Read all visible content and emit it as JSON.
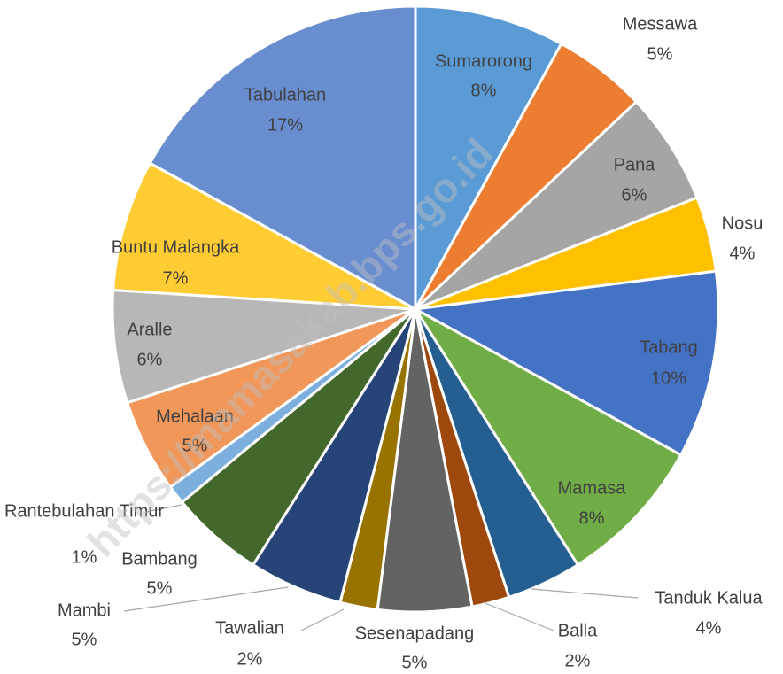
{
  "chart_data": {
    "type": "pie",
    "watermark": "https://mamasakab.bps.go.id",
    "categories": [
      "Sumarorong",
      "Messawa",
      "Pana",
      "Nosu",
      "Tabang",
      "Mamasa",
      "Tanduk Kalua",
      "Balla",
      "Sesenapadang",
      "Tawalian",
      "Mambi",
      "Bambang",
      "Rantebulahan Timur",
      "Mehalaan",
      "Aralle",
      "Buntu Malangka",
      "Tabulahan"
    ],
    "values": [
      8,
      5,
      6,
      4,
      10,
      8,
      4,
      2,
      5,
      2,
      5,
      5,
      1,
      5,
      6,
      7,
      17
    ],
    "value_labels": [
      "8%",
      "5%",
      "6%",
      "4%",
      "10%",
      "8%",
      "4%",
      "2%",
      "5%",
      "2%",
      "5%",
      "5%",
      "1%",
      "5%",
      "6%",
      "7%",
      "17%"
    ],
    "colors": [
      "#5b9bd5",
      "#ed7d31",
      "#a5a5a5",
      "#ffc000",
      "#4472c4",
      "#70ad47",
      "#255e91",
      "#9e480e",
      "#636363",
      "#997300",
      "#264478",
      "#43682b",
      "#7cafdd",
      "#f1975a",
      "#b7b7b7",
      "#ffcd33",
      "#698ed0"
    ]
  }
}
